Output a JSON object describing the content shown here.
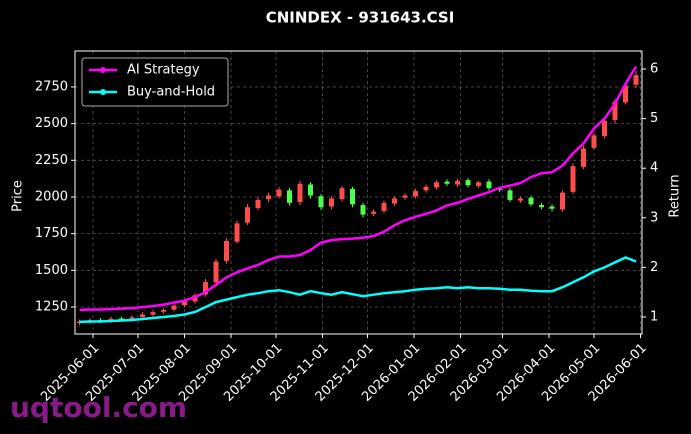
{
  "chart_data": {
    "type": "candlestick",
    "title": "CNINDEX - 931643.CSI",
    "y_label": "Price",
    "y2_label": "Return",
    "watermark": "uqtool.com",
    "legend": "upper left",
    "grid": true,
    "up_color": "#ff4d4d",
    "down_color": "#4dff4d",
    "xlim": [
      "2025-05-20",
      "2026-06-02"
    ],
    "xticks": [
      "2025-06-01",
      "2025-07-01",
      "2025-08-01",
      "2025-09-01",
      "2025-10-01",
      "2025-11-01",
      "2025-12-01",
      "2026-01-01",
      "2026-02-01",
      "2026-03-01",
      "2026-04-01",
      "2026-05-01",
      "2026-06-01"
    ],
    "ylim": [
      1066,
      2995
    ],
    "yticks": [
      1250,
      1500,
      1750,
      2000,
      2250,
      2500,
      2750
    ],
    "y2lim": [
      0.657,
      6.363
    ],
    "y2ticks": [
      1,
      2,
      3,
      4,
      5,
      6
    ],
    "x": [
      "2025-05-23",
      "2025-05-30",
      "2025-06-06",
      "2025-06-13",
      "2025-06-20",
      "2025-06-27",
      "2025-07-04",
      "2025-07-11",
      "2025-07-18",
      "2025-07-25",
      "2025-08-01",
      "2025-08-08",
      "2025-08-15",
      "2025-08-22",
      "2025-08-29",
      "2025-09-05",
      "2025-09-12",
      "2025-09-19",
      "2025-09-26",
      "2025-10-03",
      "2025-10-10",
      "2025-10-17",
      "2025-10-24",
      "2025-10-31",
      "2025-11-07",
      "2025-11-14",
      "2025-11-21",
      "2025-11-28",
      "2025-12-05",
      "2025-12-12",
      "2025-12-19",
      "2025-12-26",
      "2026-01-02",
      "2026-01-09",
      "2026-01-16",
      "2026-01-23",
      "2026-01-30",
      "2026-02-06",
      "2026-02-13",
      "2026-02-20",
      "2026-02-27",
      "2026-03-06",
      "2026-03-13",
      "2026-03-20",
      "2026-03-27",
      "2026-04-03",
      "2026-04-10",
      "2026-04-17",
      "2026-04-24",
      "2026-05-01",
      "2026-05-08",
      "2026-05-15",
      "2026-05-22",
      "2026-05-29"
    ],
    "open": [
      1140,
      1150,
      1162,
      1154,
      1172,
      1163,
      1182,
      1198,
      1218,
      1232,
      1262,
      1288,
      1335,
      1418,
      1565,
      1695,
      1825,
      1925,
      1985,
      2005,
      2045,
      1965,
      2085,
      2005,
      1935,
      1985,
      2055,
      1945,
      1885,
      1905,
      1955,
      1995,
      2005,
      2045,
      2065,
      2105,
      2085,
      2115,
      2075,
      2105,
      2055,
      2045,
      1975,
      1995,
      1945,
      1935,
      1915,
      2035,
      2205,
      2335,
      2415,
      2525,
      2645,
      2765
    ],
    "high": [
      1165,
      1175,
      1175,
      1185,
      1185,
      1195,
      1215,
      1230,
      1245,
      1275,
      1305,
      1345,
      1440,
      1580,
      1720,
      1840,
      1950,
      2000,
      2030,
      2070,
      2060,
      2110,
      2100,
      2020,
      2005,
      2075,
      2070,
      1960,
      1915,
      1975,
      2005,
      2025,
      2055,
      2085,
      2115,
      2120,
      2125,
      2130,
      2110,
      2120,
      2070,
      2060,
      2005,
      2010,
      1960,
      1950,
      2045,
      2230,
      2350,
      2440,
      2540,
      2670,
      2780,
      2860
    ],
    "low": [
      1125,
      1135,
      1140,
      1140,
      1150,
      1150,
      1170,
      1185,
      1205,
      1220,
      1250,
      1275,
      1320,
      1400,
      1545,
      1680,
      1810,
      1910,
      1965,
      1990,
      1940,
      1945,
      1990,
      1910,
      1915,
      1970,
      1930,
      1860,
      1870,
      1890,
      1940,
      1980,
      1990,
      2030,
      2050,
      2075,
      2070,
      2065,
      2060,
      2045,
      2035,
      1965,
      1960,
      1935,
      1915,
      1900,
      1900,
      2020,
      2190,
      2320,
      2400,
      2500,
      2630,
      2740
    ],
    "close": [
      1150,
      1160,
      1155,
      1170,
      1165,
      1180,
      1200,
      1215,
      1230,
      1260,
      1290,
      1330,
      1420,
      1560,
      1700,
      1820,
      1930,
      1980,
      2010,
      2050,
      1960,
      2090,
      2010,
      1930,
      1990,
      2060,
      1950,
      1880,
      1900,
      1960,
      1990,
      2010,
      2040,
      2070,
      2100,
      2090,
      2110,
      2080,
      2100,
      2060,
      2050,
      1980,
      1990,
      1950,
      1930,
      1920,
      2030,
      2210,
      2330,
      2420,
      2520,
      2650,
      2760,
      2830
    ],
    "series": [
      {
        "name": "AI Strategy",
        "color": "#ff00ff",
        "axis": "y2",
        "values": [
          1.14,
          1.15,
          1.15,
          1.16,
          1.17,
          1.18,
          1.2,
          1.22,
          1.25,
          1.29,
          1.33,
          1.4,
          1.5,
          1.65,
          1.8,
          1.9,
          1.98,
          2.05,
          2.15,
          2.22,
          2.22,
          2.25,
          2.35,
          2.5,
          2.55,
          2.57,
          2.58,
          2.6,
          2.63,
          2.72,
          2.85,
          2.95,
          3.02,
          3.08,
          3.15,
          3.25,
          3.3,
          3.38,
          3.45,
          3.52,
          3.6,
          3.65,
          3.7,
          3.82,
          3.9,
          3.92,
          4.05,
          4.3,
          4.5,
          4.8,
          5.0,
          5.3,
          5.7,
          6.05
        ]
      },
      {
        "name": "Buy-and-Hold",
        "color": "#00ffff",
        "axis": "y2",
        "values": [
          0.9,
          0.91,
          0.91,
          0.92,
          0.93,
          0.94,
          0.96,
          0.98,
          1.0,
          1.02,
          1.05,
          1.1,
          1.2,
          1.3,
          1.35,
          1.4,
          1.45,
          1.48,
          1.52,
          1.54,
          1.5,
          1.45,
          1.52,
          1.48,
          1.45,
          1.5,
          1.46,
          1.42,
          1.45,
          1.48,
          1.5,
          1.52,
          1.55,
          1.57,
          1.58,
          1.6,
          1.58,
          1.6,
          1.58,
          1.58,
          1.57,
          1.55,
          1.55,
          1.53,
          1.52,
          1.52,
          1.6,
          1.7,
          1.8,
          1.92,
          2.0,
          2.1,
          2.2,
          2.12
        ]
      }
    ]
  }
}
